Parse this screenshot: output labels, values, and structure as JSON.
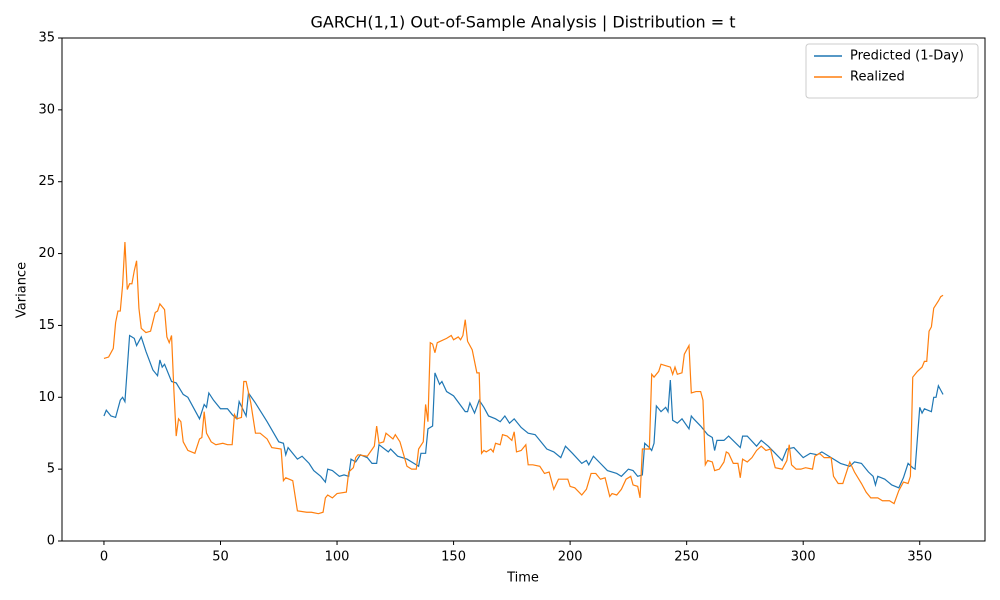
{
  "chart_data": {
    "type": "line",
    "title": "GARCH(1,1) Out-of-Sample Analysis | Distribution = t",
    "x_label": "Time",
    "y_label": "Variance",
    "xlim": [
      -18,
      378
    ],
    "ylim": [
      0,
      35
    ],
    "xticks": [
      0,
      50,
      100,
      150,
      200,
      250,
      300,
      350
    ],
    "yticks": [
      0,
      5,
      10,
      15,
      20,
      25,
      30,
      35
    ],
    "grid": false,
    "legend": "upper-right",
    "series": [
      {
        "name": "Predicted (1-Day)",
        "color": "#1f77b4",
        "x": [
          0,
          1,
          3,
          5,
          7,
          8,
          9,
          10,
          11,
          13,
          14,
          16,
          18,
          21,
          23,
          24,
          25,
          26,
          29,
          31,
          34,
          36,
          41,
          43,
          44,
          45,
          47,
          50,
          53,
          55,
          57,
          58,
          61,
          62,
          65,
          70,
          75,
          77,
          78,
          79,
          83,
          85,
          88,
          90,
          93,
          95,
          96,
          98,
          101,
          103,
          105,
          106,
          108,
          110,
          113,
          115,
          117,
          118,
          122,
          123,
          126,
          130,
          133,
          135,
          136,
          138,
          139,
          141,
          142,
          144,
          145,
          147,
          150,
          155,
          156,
          157,
          159,
          161,
          163,
          165,
          168,
          170,
          172,
          174,
          176,
          179,
          182,
          185,
          188,
          190,
          193,
          196,
          198,
          201,
          205,
          207,
          208,
          210,
          213,
          216,
          220,
          222,
          225,
          227,
          229,
          231,
          232,
          234,
          235,
          236,
          237,
          239,
          241,
          242,
          243,
          244,
          246,
          248,
          251,
          252,
          253,
          256,
          259,
          261,
          262,
          263,
          266,
          268,
          273,
          274,
          276,
          280,
          282,
          285,
          288,
          291,
          293,
          296,
          300,
          303,
          306,
          308,
          312,
          316,
          320,
          322,
          325,
          328,
          330,
          331,
          332,
          335,
          338,
          341,
          343,
          345,
          347,
          348,
          350,
          351,
          352,
          355,
          356,
          357,
          358,
          359,
          360
        ],
        "values": [
          8.7,
          9.1,
          8.7,
          8.6,
          9.8,
          10.0,
          9.7,
          12.0,
          14.3,
          14.1,
          13.6,
          14.2,
          13.2,
          11.9,
          11.5,
          12.6,
          12.1,
          12.3,
          11.1,
          11.0,
          10.2,
          10.0,
          8.5,
          9.5,
          9.3,
          10.3,
          9.8,
          9.2,
          9.2,
          8.8,
          8.5,
          9.7,
          8.7,
          10.3,
          9.6,
          8.3,
          6.9,
          6.8,
          6.0,
          6.5,
          5.7,
          5.9,
          5.4,
          4.9,
          4.5,
          4.1,
          5.0,
          4.9,
          4.5,
          4.6,
          4.5,
          5.7,
          5.5,
          6.0,
          5.8,
          5.4,
          5.4,
          6.7,
          6.2,
          6.4,
          5.9,
          5.7,
          5.4,
          5.2,
          6.1,
          6.1,
          7.8,
          8.0,
          11.7,
          10.9,
          11.1,
          10.4,
          10.1,
          9.0,
          9.0,
          9.6,
          8.9,
          9.8,
          9.3,
          8.7,
          8.5,
          8.3,
          8.7,
          8.2,
          8.5,
          7.9,
          7.5,
          7.4,
          6.8,
          6.4,
          6.2,
          5.8,
          6.6,
          6.1,
          5.4,
          5.6,
          5.3,
          5.9,
          5.4,
          4.9,
          4.7,
          4.5,
          5.0,
          4.9,
          4.5,
          4.6,
          6.8,
          6.5,
          6.3,
          6.8,
          9.4,
          9.0,
          9.3,
          9.0,
          11.2,
          8.4,
          8.2,
          8.5,
          7.8,
          8.7,
          8.5,
          8.0,
          7.4,
          7.2,
          6.3,
          7.0,
          7.0,
          7.3,
          6.5,
          7.3,
          7.3,
          6.6,
          7.0,
          6.6,
          6.1,
          5.6,
          6.4,
          6.5,
          5.8,
          6.1,
          6.0,
          6.2,
          5.8,
          5.4,
          5.2,
          5.5,
          5.4,
          4.8,
          4.5,
          3.9,
          4.5,
          4.3,
          3.9,
          3.7,
          4.4,
          5.4,
          5.1,
          5.0,
          9.3,
          8.9,
          9.2,
          9.0,
          10.0,
          10.0,
          10.8,
          10.5,
          10.2
        ]
      },
      {
        "name": "Realized",
        "color": "#ff7f0e",
        "x": [
          0,
          2,
          4,
          5,
          6,
          7,
          8,
          9,
          10,
          11,
          12,
          13,
          14,
          15,
          16,
          18,
          20,
          22,
          23,
          24,
          26,
          27,
          28,
          29,
          30,
          31,
          32,
          33,
          34,
          36,
          39,
          41,
          42,
          43,
          44,
          46,
          48,
          51,
          53,
          55,
          56,
          57,
          59,
          60,
          61,
          63,
          65,
          67,
          70,
          72,
          76,
          77,
          78,
          81,
          83,
          87,
          89,
          92,
          94,
          95,
          96,
          98,
          100,
          104,
          105,
          107,
          108,
          109,
          113,
          116,
          117,
          118,
          120,
          121,
          124,
          125,
          127,
          130,
          132,
          134,
          135,
          137,
          138,
          139,
          140,
          141,
          142,
          143,
          147,
          149,
          150,
          152,
          153,
          154,
          155,
          156,
          158,
          160,
          161,
          162,
          163,
          164,
          166,
          167,
          168,
          170,
          171,
          173,
          175,
          176,
          177,
          179,
          181,
          182,
          184,
          187,
          189,
          191,
          193,
          195,
          197,
          199,
          200,
          202,
          205,
          207,
          209,
          211,
          213,
          215,
          217,
          218,
          220,
          222,
          224,
          226,
          227,
          229,
          230,
          231,
          234,
          235,
          236,
          238,
          239,
          241,
          243,
          244,
          245,
          246,
          248,
          249,
          251,
          252,
          254,
          256,
          257,
          258,
          259,
          261,
          262,
          264,
          266,
          267,
          268,
          270,
          272,
          273,
          274,
          276,
          278,
          280,
          282,
          284,
          286,
          287,
          288,
          291,
          293,
          294,
          295,
          297,
          299,
          301,
          304,
          305,
          307,
          309,
          312,
          313,
          315,
          317,
          319,
          320,
          322,
          325,
          327,
          329,
          332,
          334,
          337,
          339,
          341,
          343,
          345,
          346,
          347,
          349,
          351,
          352,
          353,
          354,
          355,
          356,
          358,
          359,
          360
        ],
        "values": [
          12.7,
          12.8,
          13.4,
          15.2,
          16.0,
          16.0,
          17.8,
          20.8,
          17.5,
          17.9,
          17.9,
          18.8,
          19.5,
          16.2,
          14.8,
          14.5,
          14.6,
          15.9,
          16.0,
          16.5,
          16.1,
          14.2,
          13.8,
          14.3,
          10.5,
          7.3,
          8.5,
          8.3,
          6.9,
          6.3,
          6.1,
          7.1,
          7.2,
          9.0,
          7.5,
          6.9,
          6.7,
          6.8,
          6.7,
          6.7,
          8.8,
          8.5,
          8.6,
          11.1,
          11.1,
          9.6,
          7.5,
          7.5,
          7.1,
          6.5,
          6.4,
          4.2,
          4.4,
          4.2,
          2.1,
          2.0,
          2.0,
          1.9,
          2.0,
          3.0,
          3.2,
          3.0,
          3.3,
          3.4,
          4.8,
          5.1,
          5.8,
          6.0,
          5.9,
          6.6,
          8.0,
          6.8,
          6.9,
          7.5,
          7.1,
          7.4,
          6.9,
          5.2,
          5.0,
          5.0,
          6.4,
          6.9,
          9.5,
          8.3,
          13.8,
          13.7,
          13.1,
          13.8,
          14.1,
          14.3,
          14.0,
          14.2,
          14.0,
          14.3,
          15.4,
          13.9,
          13.3,
          11.7,
          11.7,
          6.1,
          6.3,
          6.2,
          6.4,
          6.2,
          6.8,
          6.7,
          7.4,
          7.3,
          7.0,
          7.6,
          6.2,
          6.3,
          6.7,
          5.3,
          5.3,
          5.2,
          4.7,
          4.8,
          3.6,
          4.3,
          4.3,
          4.3,
          3.8,
          3.7,
          3.2,
          3.6,
          4.7,
          4.7,
          4.3,
          4.4,
          3.1,
          3.3,
          3.2,
          3.6,
          4.3,
          4.5,
          3.9,
          3.8,
          3.0,
          6.4,
          6.4,
          11.6,
          11.4,
          11.8,
          12.3,
          12.2,
          12.1,
          11.6,
          12.1,
          11.6,
          11.7,
          13.0,
          13.6,
          10.3,
          10.4,
          10.4,
          9.8,
          5.3,
          5.6,
          5.5,
          4.9,
          5.0,
          5.5,
          6.2,
          6.1,
          5.4,
          5.4,
          4.4,
          5.7,
          5.5,
          5.8,
          6.3,
          6.6,
          6.3,
          6.4,
          5.7,
          5.1,
          5.0,
          5.6,
          6.7,
          5.3,
          5.0,
          5.0,
          5.1,
          5.0,
          5.9,
          6.1,
          5.8,
          5.8,
          4.5,
          4.0,
          4.0,
          5.0,
          5.5,
          4.8,
          4.0,
          3.4,
          3.0,
          3.0,
          2.8,
          2.8,
          2.6,
          3.5,
          4.1,
          4.0,
          4.5,
          11.4,
          11.8,
          12.1,
          12.5,
          12.5,
          14.6,
          14.9,
          16.2,
          16.7,
          17.0,
          17.1
        ]
      }
    ]
  }
}
